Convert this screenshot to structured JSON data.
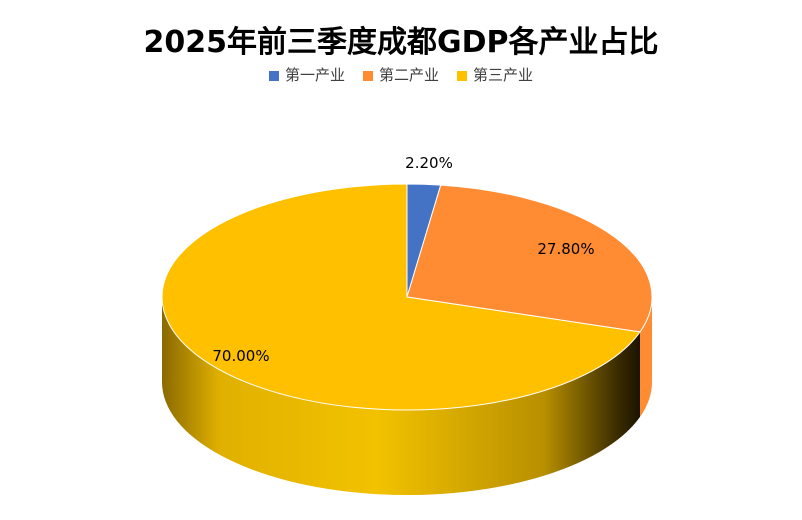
{
  "chart_data": {
    "type": "pie",
    "title": "2025年前三季度成都GDP各产业占比",
    "categories": [
      "第一产业",
      "第二产业",
      "第三产业"
    ],
    "values": [
      2.2,
      27.8,
      70.0
    ],
    "data_labels": [
      "2.20%",
      "27.80%",
      "70.00%"
    ],
    "colors": [
      "#4472C4",
      "#FF8C33",
      "#FFC000"
    ],
    "legend_position": "top",
    "style": "3d"
  }
}
